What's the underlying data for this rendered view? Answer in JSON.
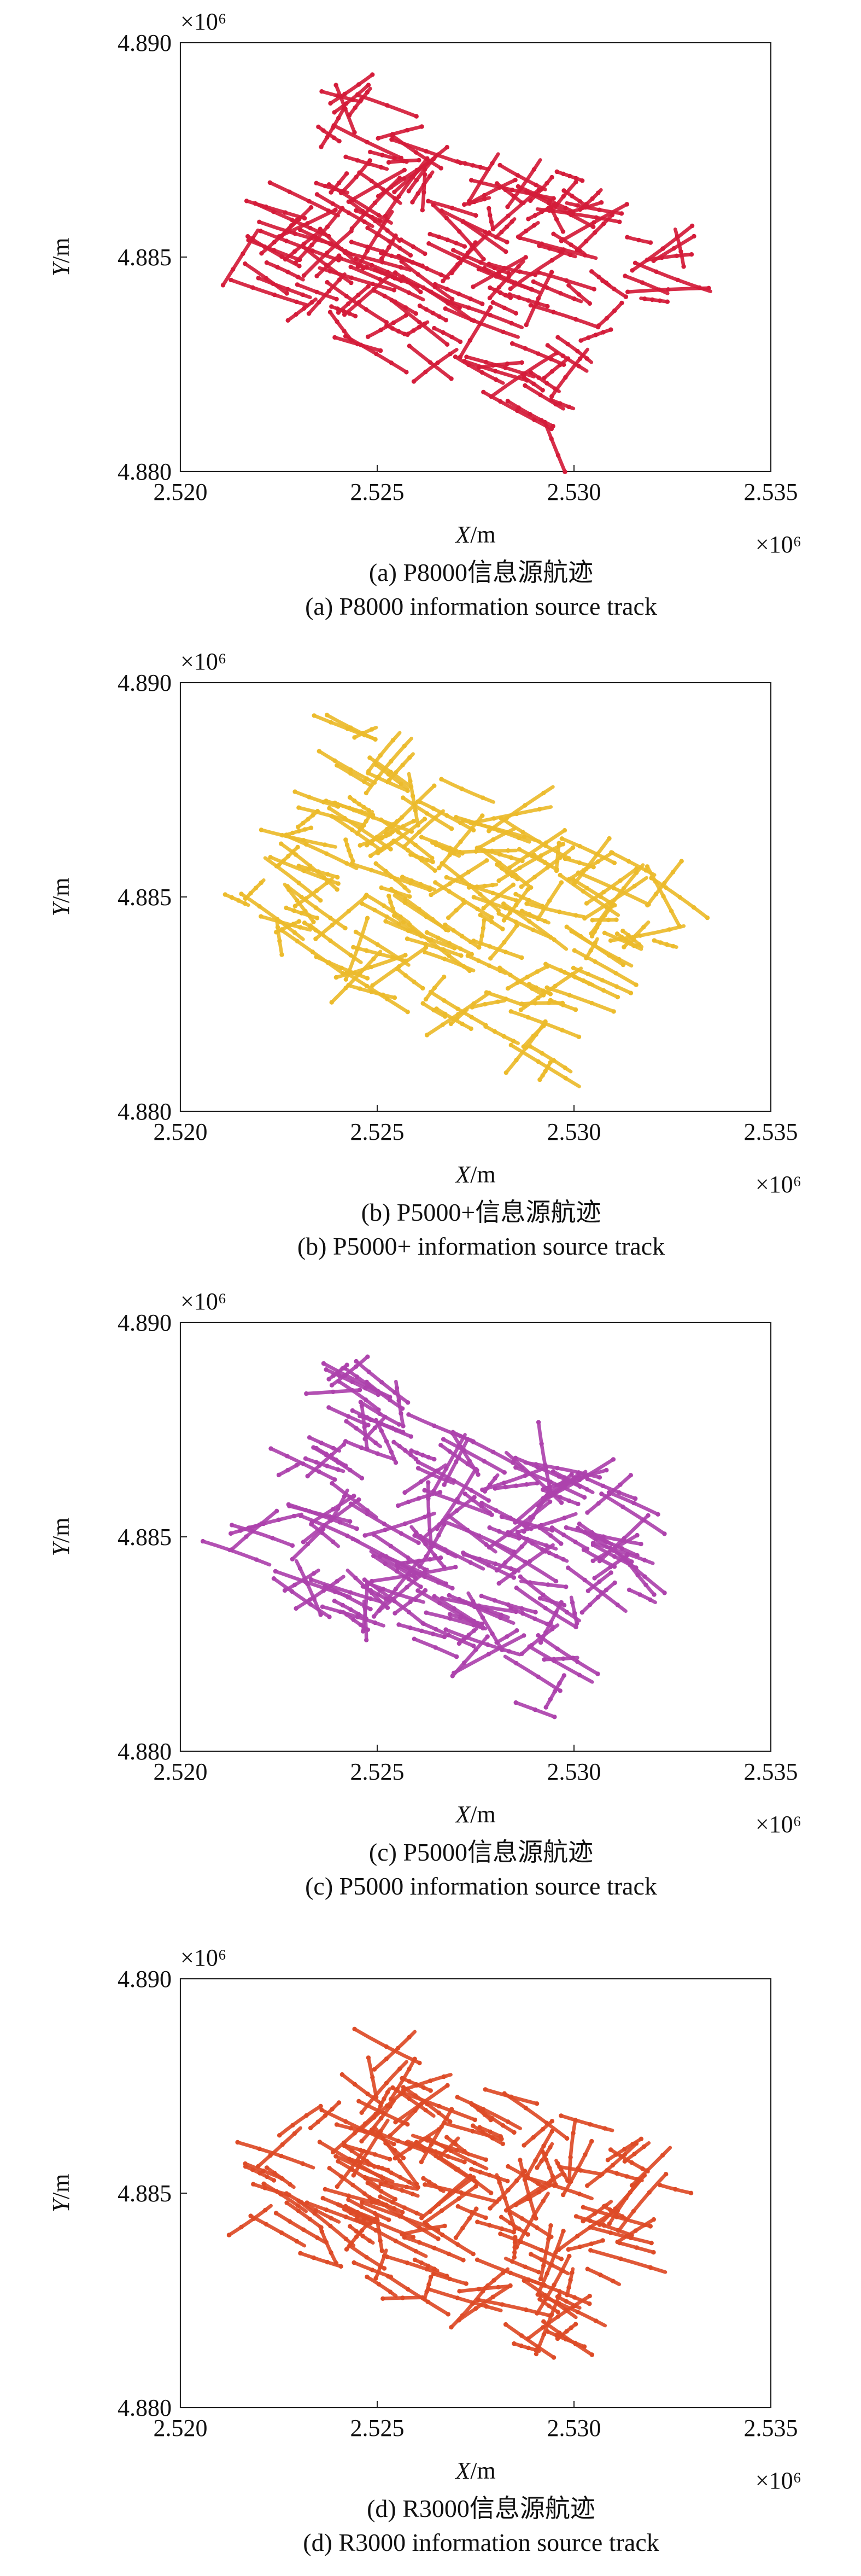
{
  "chart_data": [
    {
      "type": "scatter",
      "caption_zh": "(a) P8000信息源航迹",
      "caption_en": "(a) P8000 information source track",
      "color": "#d41c3a",
      "xlabel_var": "X",
      "xlabel_unit": "/m",
      "ylabel_var": "Y",
      "ylabel_unit": "/m",
      "x_multiplier": "×10⁶",
      "y_multiplier": "×10⁶",
      "xlim": [
        2.52,
        2.535
      ],
      "ylim": [
        4.88,
        4.89
      ],
      "xticks": [
        "2.520",
        "2.525",
        "2.530",
        "2.535"
      ],
      "yticks": [
        "4.880",
        "4.885",
        "4.890"
      ],
      "seed": 11
    },
    {
      "type": "scatter",
      "caption_zh": "(b) P5000+信息源航迹",
      "caption_en": "(b) P5000+ information source track",
      "color": "#ecbb2c",
      "xlabel_var": "X",
      "xlabel_unit": "/m",
      "ylabel_var": "Y",
      "ylabel_unit": "/m",
      "x_multiplier": "×10⁶",
      "y_multiplier": "×10⁶",
      "xlim": [
        2.52,
        2.535
      ],
      "ylim": [
        4.88,
        4.89
      ],
      "xticks": [
        "2.520",
        "2.525",
        "2.530",
        "2.535"
      ],
      "yticks": [
        "4.880",
        "4.885",
        "4.890"
      ],
      "seed": 23
    },
    {
      "type": "scatter",
      "caption_zh": "(c) P5000信息源航迹",
      "caption_en": "(c) P5000 information source track",
      "color": "#ad42ac",
      "xlabel_var": "X",
      "xlabel_unit": "/m",
      "ylabel_var": "Y",
      "ylabel_unit": "/m",
      "x_multiplier": "×10⁶",
      "y_multiplier": "×10⁶",
      "xlim": [
        2.52,
        2.535
      ],
      "ylim": [
        4.88,
        4.89
      ],
      "xticks": [
        "2.520",
        "2.525",
        "2.530",
        "2.535"
      ],
      "yticks": [
        "4.880",
        "4.885",
        "4.890"
      ],
      "seed": 37
    },
    {
      "type": "scatter",
      "caption_zh": "(d) R3000信息源航迹",
      "caption_en": "(d) R3000 information source track",
      "color": "#dd4b27",
      "xlabel_var": "X",
      "xlabel_unit": "/m",
      "ylabel_var": "Y",
      "ylabel_unit": "/m",
      "x_multiplier": "×10⁶",
      "y_multiplier": "×10⁶",
      "xlim": [
        2.52,
        2.535
      ],
      "ylim": [
        4.88,
        4.89
      ],
      "xticks": [
        "2.520",
        "2.525",
        "2.530",
        "2.535"
      ],
      "yticks": [
        "4.880",
        "4.885",
        "4.890"
      ],
      "seed": 41
    }
  ]
}
